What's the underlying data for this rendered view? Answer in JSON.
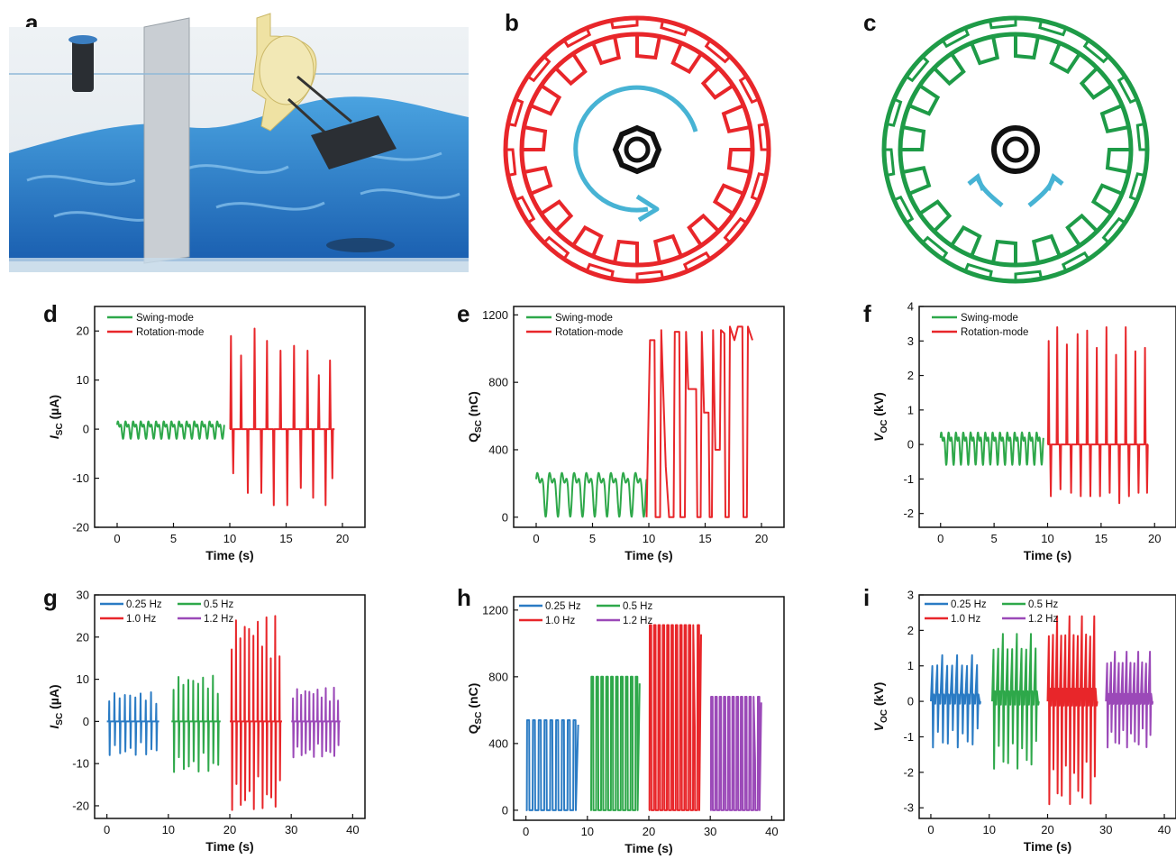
{
  "panel_letters": [
    "a",
    "b",
    "c",
    "d",
    "e",
    "f",
    "g",
    "h",
    "i"
  ],
  "colors": {
    "swing": "#2ea84a",
    "rotation": "#e8262a",
    "hz025": "#2a7bc4",
    "hz05": "#2ea84a",
    "hz10": "#e8262a",
    "hz12": "#9b49b8",
    "arrow": "#47b3d4",
    "water": "#2f82c8",
    "rotor": "#e8262a",
    "rotor_green": "#1e9b47"
  },
  "icons": {
    "a": "wave-tank-illustration",
    "b": "rotation-rotor-icon",
    "c": "swing-rotor-icon"
  },
  "chart_data": [
    {
      "id": "d",
      "type": "line",
      "xlabel": "Time (s)",
      "ylabel_main": "I",
      "ylabel_sub": "SC",
      "ylabel_unit": " (µA)",
      "xlim": [
        -2,
        22
      ],
      "ylim": [
        -20,
        25
      ],
      "xticks": [
        0,
        5,
        10,
        15,
        20
      ],
      "yticks": [
        -20,
        -10,
        0,
        10,
        20
      ],
      "legend": [
        {
          "label": "Swing-mode",
          "color": "#2ea84a"
        },
        {
          "label": "Rotation-mode",
          "color": "#e8262a"
        }
      ],
      "series": [
        {
          "name": "Swing-mode",
          "color": "#2ea84a",
          "x_range": [
            0,
            9.5
          ],
          "baseline": 0,
          "periods": 14,
          "amp_pos": 2.5,
          "amp_neg": -2.0,
          "shape": "osc"
        },
        {
          "name": "Rotation-mode",
          "color": "#e8262a",
          "x_range": [
            10,
            19.3
          ],
          "baseline": 0,
          "peaks": [
            [
              10.1,
              19
            ],
            [
              10.3,
              -9
            ],
            [
              11.0,
              15
            ],
            [
              11.6,
              -13
            ],
            [
              12.2,
              20.5
            ],
            [
              12.8,
              -13
            ],
            [
              13.3,
              18
            ],
            [
              13.9,
              -15.5
            ],
            [
              14.5,
              16
            ],
            [
              15.1,
              -15.5
            ],
            [
              15.7,
              17
            ],
            [
              16.3,
              -12
            ],
            [
              16.9,
              16
            ],
            [
              17.4,
              -14
            ],
            [
              17.9,
              11
            ],
            [
              18.5,
              -15.5
            ],
            [
              18.9,
              14
            ],
            [
              19.1,
              -10
            ]
          ],
          "shape": "spikes"
        }
      ]
    },
    {
      "id": "e",
      "type": "line",
      "xlabel": "Time (s)",
      "ylabel_main": "Q",
      "ylabel_sub": "SC",
      "ylabel_unit": " (nC)",
      "xlim": [
        -2,
        22
      ],
      "ylim": [
        -60,
        1250
      ],
      "xticks": [
        0,
        5,
        10,
        15,
        20
      ],
      "yticks": [
        0,
        400,
        800,
        1200
      ],
      "legend": [
        {
          "label": "Swing-mode",
          "color": "#2ea84a"
        },
        {
          "label": "Rotation-mode",
          "color": "#e8262a"
        }
      ],
      "series": [
        {
          "name": "Swing-mode",
          "color": "#2ea84a",
          "x_range": [
            0,
            9.8
          ],
          "baseline": 180,
          "periods": 9,
          "amp_pos": 130,
          "amp_neg": -180,
          "shape": "osc"
        },
        {
          "name": "Rotation-mode",
          "color": "#e8262a",
          "x_range": [
            9.8,
            19.2
          ],
          "shape": "square",
          "levels": [
            [
              9.8,
              0
            ],
            [
              10.1,
              1050
            ],
            [
              10.5,
              1050
            ],
            [
              10.6,
              0
            ],
            [
              11.0,
              0
            ],
            [
              11.1,
              1110
            ],
            [
              11.5,
              300
            ],
            [
              11.8,
              0
            ],
            [
              12.2,
              0
            ],
            [
              12.3,
              1100
            ],
            [
              12.7,
              1100
            ],
            [
              12.8,
              0
            ],
            [
              13.2,
              0
            ],
            [
              13.3,
              1100
            ],
            [
              13.5,
              760
            ],
            [
              14.2,
              760
            ],
            [
              14.3,
              0
            ],
            [
              14.6,
              0
            ],
            [
              14.7,
              1100
            ],
            [
              14.9,
              620
            ],
            [
              15.3,
              620
            ],
            [
              15.4,
              0
            ],
            [
              15.6,
              0
            ],
            [
              15.7,
              1110
            ],
            [
              15.9,
              400
            ],
            [
              16.3,
              400
            ],
            [
              16.4,
              1110
            ],
            [
              16.7,
              1090
            ],
            [
              16.8,
              0
            ],
            [
              17.1,
              0
            ],
            [
              17.2,
              1130
            ],
            [
              17.6,
              1050
            ],
            [
              17.9,
              1130
            ],
            [
              18.3,
              1130
            ],
            [
              18.4,
              0
            ],
            [
              18.7,
              0
            ],
            [
              18.8,
              1130
            ],
            [
              19.2,
              1050
            ]
          ]
        }
      ]
    },
    {
      "id": "f",
      "type": "line",
      "xlabel": "Time (s)",
      "ylabel_main": "V",
      "ylabel_sub": "OC",
      "ylabel_unit": " (kV)",
      "xlim": [
        -2,
        22
      ],
      "ylim": [
        -2.4,
        4
      ],
      "xticks": [
        0,
        5,
        10,
        15,
        20
      ],
      "yticks": [
        -2,
        -1,
        0,
        1,
        2,
        3,
        4
      ],
      "legend": [
        {
          "label": "Swing-mode",
          "color": "#2ea84a"
        },
        {
          "label": "Rotation-mode",
          "color": "#e8262a"
        }
      ],
      "series": [
        {
          "name": "Swing-mode",
          "color": "#2ea84a",
          "x_range": [
            0,
            9.6
          ],
          "baseline": 0,
          "periods": 14,
          "amp_pos": 0.55,
          "amp_neg": -0.6,
          "shape": "osc"
        },
        {
          "name": "Rotation-mode",
          "color": "#e8262a",
          "x_range": [
            10,
            19.4
          ],
          "baseline": 0,
          "peaks": [
            [
              10.1,
              3.0
            ],
            [
              10.3,
              -1.5
            ],
            [
              10.9,
              3.4
            ],
            [
              11.2,
              -1.3
            ],
            [
              11.8,
              2.9
            ],
            [
              12.2,
              -1.4
            ],
            [
              12.8,
              3.2
            ],
            [
              13.1,
              -1.5
            ],
            [
              13.7,
              3.3
            ],
            [
              14.0,
              -1.5
            ],
            [
              14.6,
              2.8
            ],
            [
              14.9,
              -1.5
            ],
            [
              15.5,
              3.4
            ],
            [
              15.8,
              -1.4
            ],
            [
              16.4,
              2.6
            ],
            [
              16.7,
              -1.7
            ],
            [
              17.3,
              3.4
            ],
            [
              17.6,
              -1.5
            ],
            [
              18.2,
              2.7
            ],
            [
              18.5,
              -1.4
            ],
            [
              19.1,
              2.8
            ],
            [
              19.3,
              -1.4
            ]
          ],
          "shape": "spikes"
        }
      ]
    },
    {
      "id": "g",
      "type": "line",
      "xlabel": "Time (s)",
      "ylabel_main": "I",
      "ylabel_sub": "SC",
      "ylabel_unit": " (µA)",
      "xlim": [
        -2,
        42
      ],
      "ylim": [
        -23,
        30
      ],
      "xticks": [
        0,
        10,
        20,
        30,
        40
      ],
      "yticks": [
        -20,
        -10,
        0,
        10,
        20,
        30
      ],
      "legend": [
        {
          "label": "0.25 Hz",
          "color": "#2a7bc4"
        },
        {
          "label": "0.5 Hz",
          "color": "#2ea84a"
        },
        {
          "label": "1.0 Hz",
          "color": "#e8262a"
        },
        {
          "label": "1.2 Hz",
          "color": "#9b49b8"
        }
      ],
      "series": [
        {
          "name": "0.25 Hz",
          "color": "#2a7bc4",
          "x_range": [
            0,
            8.5
          ],
          "baseline": 0,
          "count": 10,
          "amp_pos": 7,
          "amp_neg": -8,
          "shape": "pulses"
        },
        {
          "name": "0.5 Hz",
          "color": "#2ea84a",
          "x_range": [
            10.5,
            18.5
          ],
          "baseline": 0,
          "count": 10,
          "amp_pos": 11,
          "amp_neg": -12,
          "shape": "pulses"
        },
        {
          "name": "1.0 Hz",
          "color": "#e8262a",
          "x_range": [
            20,
            28.5
          ],
          "baseline": 0,
          "count": 12,
          "amp_pos": 25,
          "amp_neg": -21,
          "shape": "pulses"
        },
        {
          "name": "1.2 Hz",
          "color": "#9b49b8",
          "x_range": [
            30,
            38
          ],
          "baseline": 0,
          "count": 12,
          "amp_pos": 8,
          "amp_neg": -8.5,
          "shape": "pulses"
        }
      ]
    },
    {
      "id": "h",
      "type": "line",
      "xlabel": "Time (s)",
      "ylabel_main": "Q",
      "ylabel_sub": "SC",
      "ylabel_unit": " (nC)",
      "xlim": [
        -2,
        42
      ],
      "ylim": [
        -60,
        1280
      ],
      "xticks": [
        0,
        10,
        20,
        30,
        40
      ],
      "yticks": [
        0,
        400,
        800,
        1200
      ],
      "legend": [
        {
          "label": "0.25 Hz",
          "color": "#2a7bc4"
        },
        {
          "label": "0.5 Hz",
          "color": "#2ea84a"
        },
        {
          "label": "1.0 Hz",
          "color": "#e8262a"
        },
        {
          "label": "1.2 Hz",
          "color": "#9b49b8"
        }
      ],
      "series": [
        {
          "name": "0.25 Hz",
          "color": "#2a7bc4",
          "x_range": [
            0,
            8.5
          ],
          "low": 0,
          "high": 540,
          "count": 9,
          "shape": "bars"
        },
        {
          "name": "0.5 Hz",
          "color": "#2ea84a",
          "x_range": [
            10.5,
            18.5
          ],
          "low": 0,
          "high": 800,
          "count": 10,
          "shape": "bars"
        },
        {
          "name": "1.0 Hz",
          "color": "#e8262a",
          "x_range": [
            20,
            28.5
          ],
          "low": 0,
          "high": 1110,
          "count": 12,
          "shape": "bars"
        },
        {
          "name": "1.2 Hz",
          "color": "#9b49b8",
          "x_range": [
            30,
            38.3
          ],
          "low": 0,
          "high": 680,
          "count": 12,
          "shape": "bars"
        }
      ]
    },
    {
      "id": "i",
      "type": "line",
      "xlabel": "Time (s)",
      "ylabel_main": "V",
      "ylabel_sub": "OC",
      "ylabel_unit": " (kV)",
      "xlim": [
        -2,
        42
      ],
      "ylim": [
        -3.3,
        3
      ],
      "xticks": [
        0,
        10,
        20,
        30,
        40
      ],
      "yticks": [
        -3,
        -2,
        -1,
        0,
        1,
        2,
        3
      ],
      "legend": [
        {
          "label": "0.25 Hz",
          "color": "#2a7bc4"
        },
        {
          "label": "0.5 Hz",
          "color": "#2ea84a"
        },
        {
          "label": "1.0 Hz",
          "color": "#e8262a"
        },
        {
          "label": "1.2 Hz",
          "color": "#9b49b8"
        }
      ],
      "series": [
        {
          "name": "0.25 Hz",
          "color": "#2a7bc4",
          "x_range": [
            0,
            8.5
          ],
          "baseline": 0,
          "count": 10,
          "amp_pos": 1.3,
          "amp_neg": -1.3,
          "shape": "spiky"
        },
        {
          "name": "0.5 Hz",
          "color": "#2ea84a",
          "x_range": [
            10.5,
            18.5
          ],
          "baseline": 0,
          "count": 10,
          "amp_pos": 1.9,
          "amp_neg": -1.9,
          "shape": "spiky"
        },
        {
          "name": "1.0 Hz",
          "color": "#e8262a",
          "x_range": [
            20,
            28.5
          ],
          "baseline": 0,
          "count": 12,
          "amp_pos": 2.4,
          "amp_neg": -2.9,
          "shape": "spiky"
        },
        {
          "name": "1.2 Hz",
          "color": "#9b49b8",
          "x_range": [
            30,
            38
          ],
          "baseline": 0,
          "count": 12,
          "amp_pos": 1.4,
          "amp_neg": -1.3,
          "shape": "spiky"
        }
      ]
    }
  ]
}
